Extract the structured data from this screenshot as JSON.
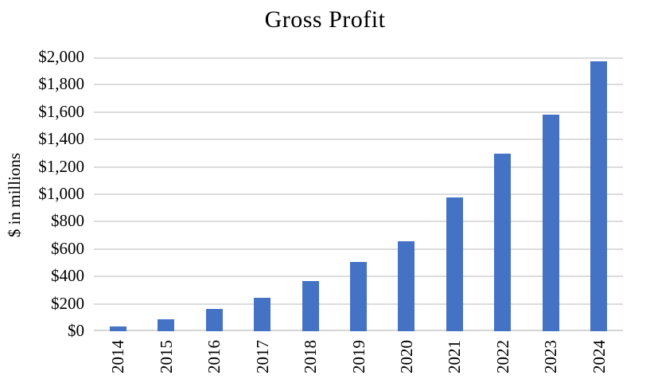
{
  "chart_data": {
    "type": "bar",
    "title": "Gross Profit",
    "xlabel": "",
    "ylabel": "$ in millions",
    "categories": [
      "2014",
      "2015",
      "2016",
      "2017",
      "2018",
      "2019",
      "2020",
      "2021",
      "2022",
      "2023",
      "2024"
    ],
    "values": [
      35,
      90,
      160,
      245,
      365,
      505,
      655,
      975,
      1295,
      1580,
      1970
    ],
    "ylim": [
      0,
      2000
    ],
    "ytick_interval": 200,
    "ytick_labels": [
      "$0",
      "$200",
      "$400",
      "$600",
      "$800",
      "$1,000",
      "$1,200",
      "$1,400",
      "$1,600",
      "$1,800",
      "$2,000"
    ],
    "grid": true,
    "legend": "none",
    "bar_color": "#4472C4",
    "gridline_color": "#DCDCDC",
    "axis_line_color": "#D4D4D4",
    "text_color": "#000000",
    "background_color": "#FFFFFF"
  }
}
